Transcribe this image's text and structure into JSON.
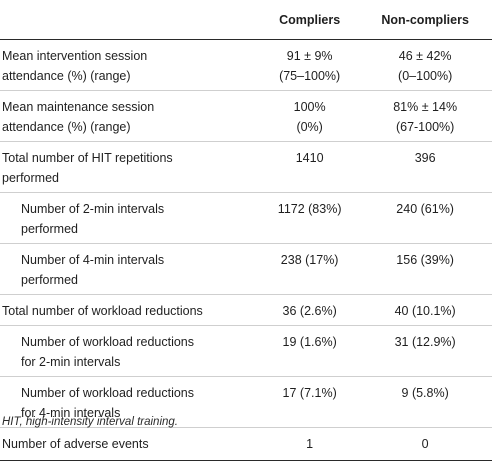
{
  "header": {
    "col0": "",
    "col1": "Compliers",
    "col2": "Non-compliers"
  },
  "rows": [
    {
      "label": [
        "Mean intervention session",
        "attendance (%) (range)"
      ],
      "compliers": [
        "91 ± 9%",
        "(75–100%)"
      ],
      "noncompliers": [
        "46 ± 42%",
        "(0–100%)"
      ],
      "sub": false
    },
    {
      "label": [
        "Mean maintenance session",
        "attendance (%) (range)"
      ],
      "compliers": [
        "100%",
        "(0%)"
      ],
      "noncompliers": [
        "81% ± 14%",
        "(67-100%)"
      ],
      "sub": false
    },
    {
      "label": [
        "Total number of HIT repetitions",
        "performed"
      ],
      "compliers": [
        "1410"
      ],
      "noncompliers": [
        "396"
      ],
      "sub": false
    },
    {
      "label": [
        "Number of 2-min intervals",
        "performed"
      ],
      "compliers": [
        "1172 (83%)"
      ],
      "noncompliers": [
        "240 (61%)"
      ],
      "sub": true
    },
    {
      "label": [
        "Number of 4-min intervals",
        "performed"
      ],
      "compliers": [
        "238 (17%)"
      ],
      "noncompliers": [
        "156 (39%)"
      ],
      "sub": true
    },
    {
      "label": [
        "Total number of workload reductions"
      ],
      "compliers": [
        "36 (2.6%)"
      ],
      "noncompliers": [
        "40 (10.1%)"
      ],
      "sub": false
    },
    {
      "label": [
        "Number of workload reductions",
        "for 2-min intervals"
      ],
      "compliers": [
        "19 (1.6%)"
      ],
      "noncompliers": [
        "31 (12.9%)"
      ],
      "sub": true
    },
    {
      "label": [
        "Number of workload reductions",
        "for 4-min intervals"
      ],
      "compliers": [
        "17 (7.1%)"
      ],
      "noncompliers": [
        "9 (5.8%)"
      ],
      "sub": true
    },
    {
      "label": [
        "Number of adverse events"
      ],
      "compliers": [
        "1"
      ],
      "noncompliers": [
        "0"
      ],
      "sub": false
    }
  ],
  "footnote": "HIT, high-intensity interval training."
}
